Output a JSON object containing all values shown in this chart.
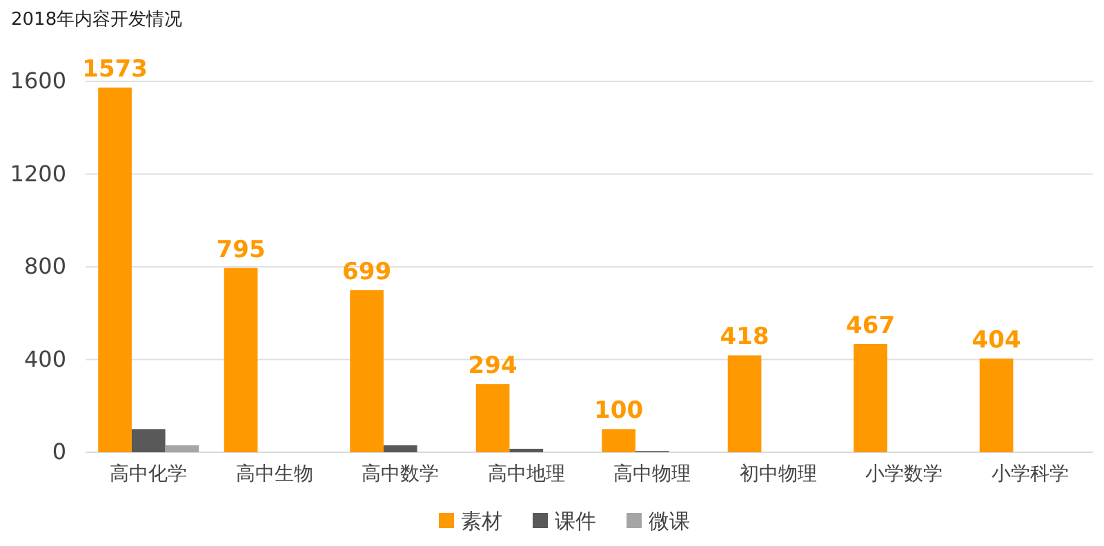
{
  "chart_data": {
    "type": "bar",
    "title": "2018年内容开发情况",
    "categories": [
      "高中化学",
      "高中生物",
      "高中数学",
      "高中地理",
      "高中物理",
      "初中物理",
      "小学数学",
      "小学科学"
    ],
    "series": [
      {
        "name": "素材",
        "color": "#ff9900",
        "values": [
          1573,
          795,
          699,
          294,
          100,
          418,
          467,
          404
        ],
        "value_labels": [
          "1573",
          "795",
          "699",
          "294",
          "100",
          "418",
          "467",
          "404"
        ]
      },
      {
        "name": "课件",
        "color": "#595959",
        "values": [
          100,
          0,
          30,
          15,
          5,
          0,
          0,
          0
        ]
      },
      {
        "name": "微课",
        "color": "#a5a5a5",
        "values": [
          30,
          0,
          0,
          0,
          0,
          0,
          0,
          0
        ]
      }
    ],
    "ylim": [
      0,
      1600
    ],
    "yticks": [
      0,
      400,
      800,
      1200,
      1600
    ],
    "grid": "y",
    "legend": "bottom"
  }
}
